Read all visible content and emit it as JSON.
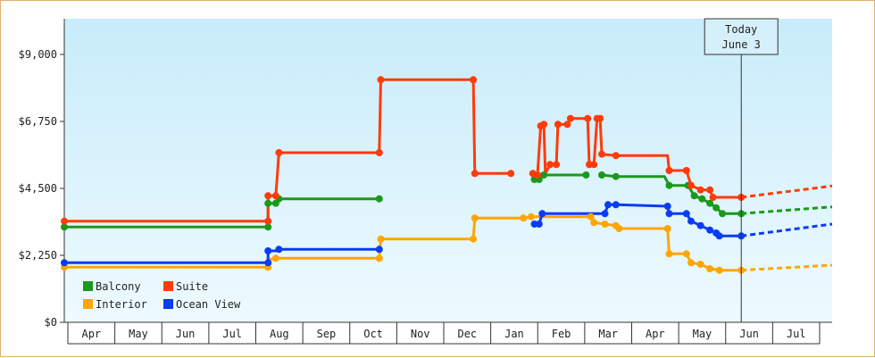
{
  "chart_data": {
    "type": "line",
    "step": true,
    "title": "",
    "xlabel": "",
    "ylabel": "",
    "y_ticks": [
      "$0",
      "$2,250",
      "$4,500",
      "$6,750",
      "$9,000"
    ],
    "ylim": [
      0,
      10200
    ],
    "x_start": "2024-03-28",
    "x_end": "2025-07-31",
    "months": [
      "Apr",
      "May",
      "Jun",
      "Jul",
      "Aug",
      "Sep",
      "Oct",
      "Nov",
      "Dec",
      "Jan",
      "Feb",
      "Mar",
      "Apr",
      "May",
      "Jun",
      "Jul"
    ],
    "today": {
      "line1": "Today",
      "line2": "June 3",
      "date": "2025-06-03"
    },
    "grid": false,
    "legend_position": "bottom-left",
    "series": [
      {
        "name": "Balcony",
        "color": "#1a9a1a",
        "points": [
          [
            "2024-03-28",
            3200
          ],
          [
            "2024-08-05",
            3200
          ],
          [
            "2024-08-05",
            4000
          ],
          [
            "2024-08-10",
            4000
          ],
          [
            "2024-08-12",
            4150
          ],
          [
            "2024-10-15",
            4150
          ],
          null,
          [
            "2025-01-22",
            4800
          ],
          [
            "2025-01-25",
            4800
          ],
          [
            "2025-01-28",
            4950
          ],
          [
            "2025-02-24",
            4950
          ],
          null,
          [
            "2025-03-06",
            4950
          ],
          [
            "2025-03-15",
            4900
          ],
          [
            "2025-04-15",
            4900
          ],
          [
            "2025-04-18",
            4600
          ],
          [
            "2025-04-30",
            4600
          ],
          [
            "2025-05-04",
            4250
          ],
          [
            "2025-05-09",
            4150
          ],
          [
            "2025-05-14",
            4000
          ],
          [
            "2025-05-18",
            3850
          ],
          [
            "2025-05-22",
            3650
          ],
          [
            "2025-06-03",
            3650
          ]
        ],
        "forecast": [
          [
            "2025-06-03",
            3650
          ],
          [
            "2025-07-31",
            3880
          ]
        ]
      },
      {
        "name": "Suite",
        "color": "#ff3b0a",
        "points": [
          [
            "2024-03-28",
            3400
          ],
          [
            "2024-08-05",
            3400
          ],
          [
            "2024-08-05",
            4250
          ],
          [
            "2024-08-10",
            4250
          ],
          [
            "2024-08-12",
            5700
          ],
          [
            "2024-10-15",
            5700
          ],
          [
            "2024-10-16",
            8150
          ],
          [
            "2024-12-14",
            8150
          ],
          [
            "2024-12-15",
            5000
          ],
          [
            "2025-01-07",
            5000
          ],
          null,
          [
            "2025-01-21",
            5000
          ],
          [
            "2025-01-24",
            4950
          ],
          [
            "2025-01-26",
            6600
          ],
          [
            "2025-01-28",
            6650
          ],
          [
            "2025-01-29",
            5000
          ],
          [
            "2025-02-01",
            5300
          ],
          [
            "2025-02-05",
            5300
          ],
          [
            "2025-02-06",
            6650
          ],
          [
            "2025-02-12",
            6650
          ],
          [
            "2025-02-14",
            6850
          ],
          [
            "2025-02-25",
            6850
          ],
          [
            "2025-02-26",
            5300
          ],
          [
            "2025-03-01",
            5300
          ],
          [
            "2025-03-03",
            6850
          ],
          [
            "2025-03-05",
            6850
          ],
          [
            "2025-03-06",
            5650
          ],
          [
            "2025-03-15",
            5600
          ],
          [
            "2025-04-17",
            5600
          ],
          [
            "2025-04-18",
            5100
          ],
          [
            "2025-04-29",
            5100
          ],
          [
            "2025-05-02",
            4600
          ],
          [
            "2025-05-08",
            4450
          ],
          [
            "2025-05-14",
            4450
          ],
          [
            "2025-05-16",
            4200
          ],
          [
            "2025-06-03",
            4200
          ]
        ],
        "forecast": [
          [
            "2025-06-03",
            4200
          ],
          [
            "2025-07-31",
            4580
          ]
        ]
      },
      {
        "name": "Interior",
        "color": "#ffa600",
        "points": [
          [
            "2024-03-28",
            1850
          ],
          [
            "2024-08-05",
            1850
          ],
          [
            "2024-08-05",
            2100
          ],
          [
            "2024-08-10",
            2150
          ],
          [
            "2024-10-15",
            2150
          ],
          [
            "2024-10-16",
            2800
          ],
          [
            "2024-12-14",
            2800
          ],
          [
            "2024-12-15",
            3500
          ],
          [
            "2025-01-15",
            3500
          ],
          [
            "2025-01-20",
            3550
          ],
          [
            "2025-02-27",
            3550
          ],
          [
            "2025-03-01",
            3350
          ],
          [
            "2025-03-08",
            3300
          ],
          [
            "2025-03-15",
            3250
          ],
          [
            "2025-03-17",
            3150
          ],
          [
            "2025-04-17",
            3150
          ],
          [
            "2025-04-18",
            2300
          ],
          [
            "2025-04-29",
            2300
          ],
          [
            "2025-05-02",
            2000
          ],
          [
            "2025-05-08",
            1950
          ],
          [
            "2025-05-14",
            1800
          ],
          [
            "2025-05-20",
            1750
          ],
          [
            "2025-06-03",
            1750
          ]
        ],
        "forecast": [
          [
            "2025-06-03",
            1750
          ],
          [
            "2025-07-31",
            1920
          ]
        ]
      },
      {
        "name": "Ocean View",
        "color": "#0a3cf5",
        "points": [
          [
            "2024-03-28",
            2000
          ],
          [
            "2024-08-05",
            2000
          ],
          [
            "2024-08-05",
            2400
          ],
          [
            "2024-08-10",
            2400
          ],
          [
            "2024-08-12",
            2450
          ],
          [
            "2024-10-15",
            2450
          ],
          null,
          [
            "2025-01-22",
            3300
          ],
          [
            "2025-01-25",
            3300
          ],
          [
            "2025-01-27",
            3650
          ],
          [
            "2025-03-08",
            3650
          ],
          [
            "2025-03-10",
            3950
          ],
          [
            "2025-03-15",
            3950
          ],
          [
            "2025-04-17",
            3900
          ],
          [
            "2025-04-18",
            3650
          ],
          [
            "2025-04-29",
            3650
          ],
          [
            "2025-05-02",
            3400
          ],
          [
            "2025-05-08",
            3250
          ],
          [
            "2025-05-14",
            3100
          ],
          [
            "2025-05-18",
            3000
          ],
          [
            "2025-05-20",
            2900
          ],
          [
            "2025-06-03",
            2900
          ]
        ],
        "forecast": [
          [
            "2025-06-03",
            2900
          ],
          [
            "2025-07-31",
            3300
          ]
        ]
      }
    ],
    "markers": {
      "Balcony": [
        [
          "2024-03-28",
          3200
        ],
        [
          "2024-08-05",
          3200
        ],
        [
          "2024-08-05",
          4000
        ],
        [
          "2024-08-10",
          4000
        ],
        [
          "2024-08-12",
          4150
        ],
        [
          "2024-10-15",
          4150
        ],
        [
          "2025-01-22",
          4800
        ],
        [
          "2025-01-25",
          4800
        ],
        [
          "2025-01-28",
          4950
        ],
        [
          "2025-02-24",
          4950
        ],
        [
          "2025-03-06",
          4950
        ],
        [
          "2025-03-15",
          4900
        ],
        [
          "2025-04-18",
          4600
        ],
        [
          "2025-04-30",
          4600
        ],
        [
          "2025-05-04",
          4250
        ],
        [
          "2025-05-09",
          4150
        ],
        [
          "2025-05-14",
          4000
        ],
        [
          "2025-05-18",
          3850
        ],
        [
          "2025-05-22",
          3650
        ],
        [
          "2025-06-03",
          3650
        ]
      ],
      "Suite": [
        [
          "2024-03-28",
          3400
        ],
        [
          "2024-08-05",
          3400
        ],
        [
          "2024-08-05",
          4250
        ],
        [
          "2024-08-10",
          4250
        ],
        [
          "2024-08-12",
          5700
        ],
        [
          "2024-10-15",
          5700
        ],
        [
          "2024-10-16",
          8150
        ],
        [
          "2024-12-14",
          8150
        ],
        [
          "2024-12-15",
          5000
        ],
        [
          "2025-01-07",
          5000
        ],
        [
          "2025-01-21",
          5000
        ],
        [
          "2025-01-24",
          4950
        ],
        [
          "2025-01-26",
          6600
        ],
        [
          "2025-01-28",
          6650
        ],
        [
          "2025-02-01",
          5300
        ],
        [
          "2025-02-05",
          5300
        ],
        [
          "2025-02-06",
          6650
        ],
        [
          "2025-02-12",
          6650
        ],
        [
          "2025-02-14",
          6850
        ],
        [
          "2025-02-25",
          6850
        ],
        [
          "2025-02-26",
          5300
        ],
        [
          "2025-03-01",
          5300
        ],
        [
          "2025-03-03",
          6850
        ],
        [
          "2025-03-05",
          6850
        ],
        [
          "2025-03-06",
          5650
        ],
        [
          "2025-03-15",
          5600
        ],
        [
          "2025-04-18",
          5100
        ],
        [
          "2025-04-29",
          5100
        ],
        [
          "2025-05-02",
          4600
        ],
        [
          "2025-05-08",
          4450
        ],
        [
          "2025-05-14",
          4450
        ],
        [
          "2025-05-16",
          4200
        ],
        [
          "2025-06-03",
          4200
        ]
      ],
      "Interior": [
        [
          "2024-03-28",
          1850
        ],
        [
          "2024-08-05",
          1850
        ],
        [
          "2024-08-10",
          2150
        ],
        [
          "2024-10-15",
          2150
        ],
        [
          "2024-10-16",
          2800
        ],
        [
          "2024-12-14",
          2800
        ],
        [
          "2024-12-15",
          3500
        ],
        [
          "2025-01-15",
          3500
        ],
        [
          "2025-01-20",
          3550
        ],
        [
          "2025-02-27",
          3550
        ],
        [
          "2025-03-01",
          3350
        ],
        [
          "2025-03-08",
          3300
        ],
        [
          "2025-03-15",
          3250
        ],
        [
          "2025-03-17",
          3150
        ],
        [
          "2025-04-17",
          3150
        ],
        [
          "2025-04-18",
          2300
        ],
        [
          "2025-04-29",
          2300
        ],
        [
          "2025-05-02",
          2000
        ],
        [
          "2025-05-08",
          1950
        ],
        [
          "2025-05-14",
          1800
        ],
        [
          "2025-05-20",
          1750
        ],
        [
          "2025-06-03",
          1750
        ]
      ],
      "Ocean View": [
        [
          "2024-03-28",
          2000
        ],
        [
          "2024-08-05",
          2000
        ],
        [
          "2024-08-05",
          2400
        ],
        [
          "2024-08-12",
          2450
        ],
        [
          "2024-10-15",
          2450
        ],
        [
          "2025-01-22",
          3300
        ],
        [
          "2025-01-25",
          3300
        ],
        [
          "2025-01-27",
          3650
        ],
        [
          "2025-03-08",
          3650
        ],
        [
          "2025-03-10",
          3950
        ],
        [
          "2025-03-15",
          3950
        ],
        [
          "2025-04-17",
          3900
        ],
        [
          "2025-04-18",
          3650
        ],
        [
          "2025-04-29",
          3650
        ],
        [
          "2025-05-02",
          3400
        ],
        [
          "2025-05-08",
          3250
        ],
        [
          "2025-05-14",
          3100
        ],
        [
          "2025-05-18",
          3000
        ],
        [
          "2025-05-20",
          2900
        ],
        [
          "2025-06-03",
          2900
        ]
      ]
    }
  }
}
